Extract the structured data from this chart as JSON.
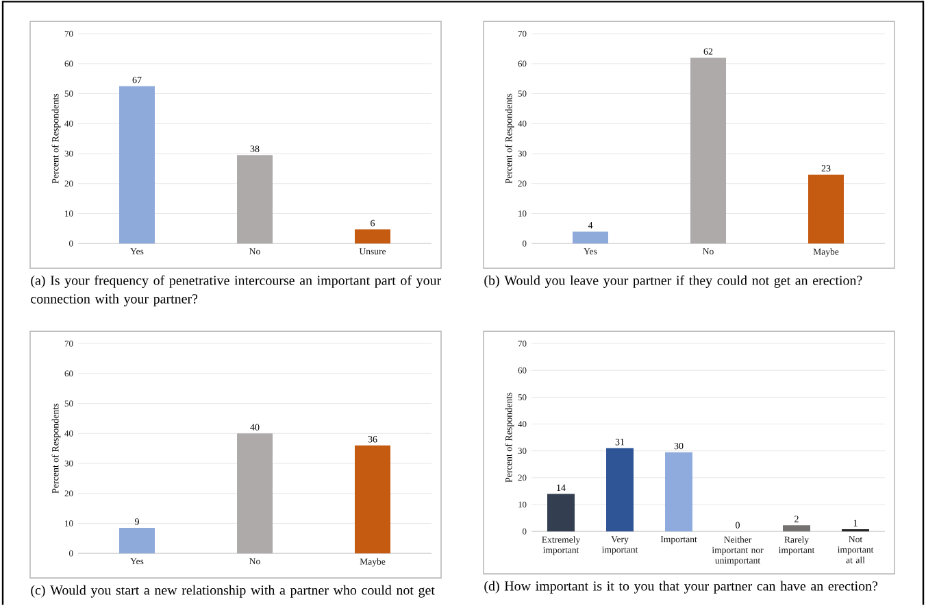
{
  "chart_data": [
    {
      "type": "bar",
      "title": "(a) Is your frequency of penetrative intercourse an important part of your connection with your partner?",
      "ylabel": "Percent of Respondents",
      "categories": [
        "Yes",
        "No",
        "Unsure"
      ],
      "values": [
        52.5,
        29.5,
        4.7
      ],
      "annotations": [
        {
          "text": "67",
          "x": "Yes",
          "y": 52.5
        },
        {
          "text": "38",
          "x": "No",
          "y": 29.5
        },
        {
          "text": "6",
          "x": "Unsure",
          "y": 4.7
        }
      ],
      "colors": [
        "#8eaadb",
        "#aeaaaa",
        "#c55a11"
      ],
      "ylim": [
        0,
        70
      ],
      "yticks": [
        0,
        10,
        20,
        30,
        40,
        50,
        60,
        70
      ],
      "grid": "y"
    },
    {
      "type": "bar",
      "title": "(b) Would you leave your partner if they could not get an erection?",
      "ylabel": "Percent of Respondents",
      "categories": [
        "Yes",
        "No",
        "Maybe"
      ],
      "values": [
        4,
        62,
        23
      ],
      "value_labels": [
        "4",
        "62",
        "23"
      ],
      "colors": [
        "#8eaadb",
        "#aeaaaa",
        "#c55a11"
      ],
      "ylim": [
        0,
        70
      ],
      "yticks": [
        0,
        10,
        20,
        30,
        40,
        50,
        60,
        70
      ],
      "grid": "y"
    },
    {
      "type": "bar",
      "title": "(c) Would you start a new relationship with a partner who could not get",
      "ylabel": "Percent of Respondents",
      "categories": [
        "Yes",
        "No",
        "Maybe"
      ],
      "values": [
        8.5,
        40,
        36
      ],
      "value_labels": [
        "9",
        "40",
        "36"
      ],
      "colors": [
        "#8eaadb",
        "#aeaaaa",
        "#c55a11"
      ],
      "ylim": [
        0,
        70
      ],
      "yticks": [
        0,
        10,
        20,
        30,
        40,
        50,
        60,
        70
      ],
      "grid": "y"
    },
    {
      "type": "bar",
      "title": "(d) How important is it to you that your partner can have an erection?",
      "ylabel": "Percent of Respondents",
      "categories": [
        "Extremely important",
        "Very important",
        "Important",
        "Neither important nor unimportant",
        "Rarely important",
        "Not important at all"
      ],
      "values": [
        14,
        31,
        29.5,
        0,
        2.3,
        0.8
      ],
      "value_labels": [
        "14",
        "31",
        "30",
        "0",
        "2",
        "1"
      ],
      "colors": [
        "#333f50",
        "#2f5597",
        "#8faadc",
        "#a5a5a5",
        "#767171",
        "#262626"
      ],
      "ylim": [
        0,
        70
      ],
      "yticks": [
        0,
        10,
        20,
        30,
        40,
        50,
        60,
        70
      ],
      "grid": "y"
    }
  ]
}
